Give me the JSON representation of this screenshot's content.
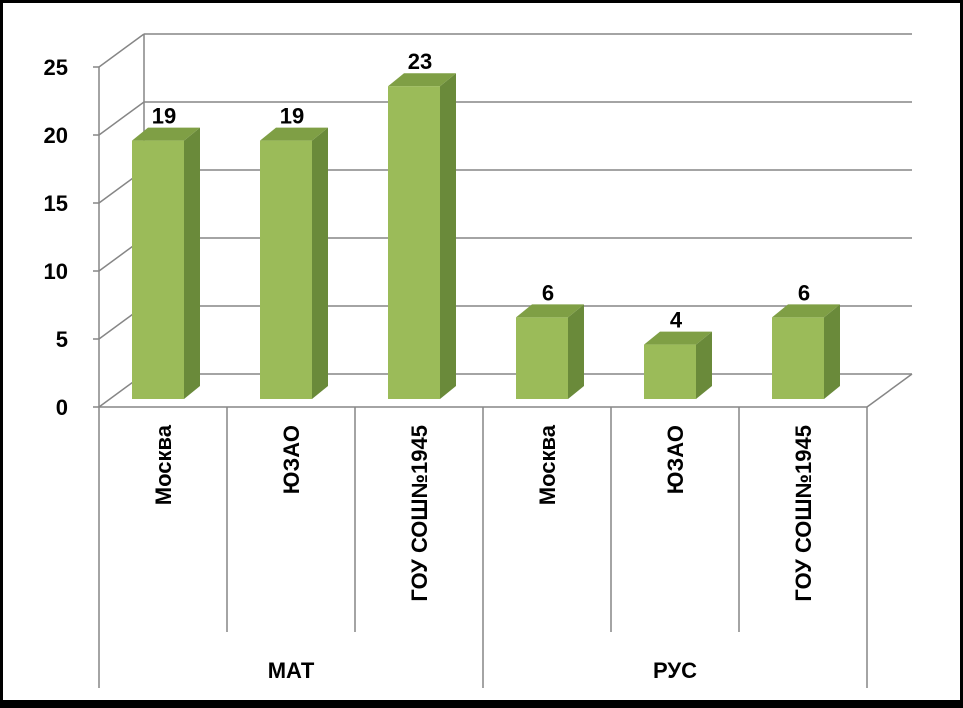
{
  "chart_data": {
    "type": "bar",
    "title": "",
    "xlabel": "",
    "ylabel": "",
    "ylim": [
      0,
      25
    ],
    "yticks": [
      0,
      5,
      10,
      15,
      20,
      25
    ],
    "grid": true,
    "three_d": true,
    "groups": [
      {
        "label": "МАТ",
        "categories": [
          "Москва",
          "ЮЗАО",
          "ГОУ СОШ№1945"
        ],
        "values": [
          19,
          19,
          23
        ]
      },
      {
        "label": "РУС",
        "categories": [
          "Москва",
          "ЮЗАО",
          "ГОУ СОШ№1945"
        ],
        "values": [
          6,
          4,
          6
        ]
      }
    ],
    "colors": {
      "bar_front": "#9bbb59",
      "bar_side": "#6a8a3a",
      "bar_top": "#7f9f45",
      "gridline": "#868686",
      "background": "#ffffff"
    }
  }
}
